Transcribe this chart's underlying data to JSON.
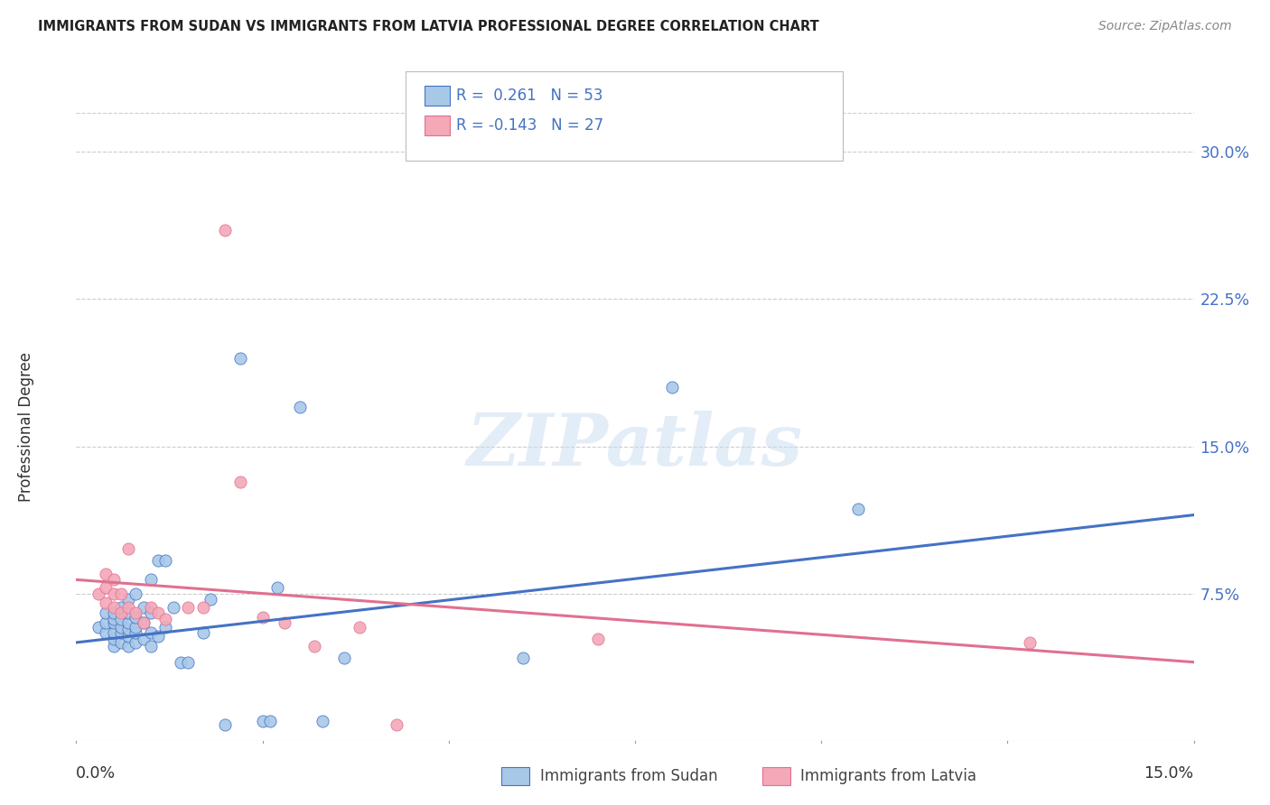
{
  "title": "IMMIGRANTS FROM SUDAN VS IMMIGRANTS FROM LATVIA PROFESSIONAL DEGREE CORRELATION CHART",
  "source": "Source: ZipAtlas.com",
  "ylabel": "Professional Degree",
  "right_yticks": [
    "30.0%",
    "22.5%",
    "15.0%",
    "7.5%"
  ],
  "right_ytick_values": [
    0.3,
    0.225,
    0.15,
    0.075
  ],
  "xlim": [
    0.0,
    0.15
  ],
  "ylim": [
    0.0,
    0.32
  ],
  "sudan_color": "#a8c8e8",
  "latvia_color": "#f4a8b8",
  "sudan_line_color": "#4472c4",
  "latvia_line_color": "#e07090",
  "watermark": "ZIPatlas",
  "sudan_scatter_x": [
    0.003,
    0.004,
    0.004,
    0.004,
    0.005,
    0.005,
    0.005,
    0.005,
    0.005,
    0.005,
    0.006,
    0.006,
    0.006,
    0.006,
    0.006,
    0.007,
    0.007,
    0.007,
    0.007,
    0.007,
    0.007,
    0.008,
    0.008,
    0.008,
    0.008,
    0.008,
    0.009,
    0.009,
    0.009,
    0.01,
    0.01,
    0.01,
    0.01,
    0.011,
    0.011,
    0.012,
    0.012,
    0.013,
    0.014,
    0.015,
    0.017,
    0.018,
    0.02,
    0.022,
    0.025,
    0.026,
    0.027,
    0.03,
    0.033,
    0.036,
    0.06,
    0.08,
    0.105
  ],
  "sudan_scatter_y": [
    0.058,
    0.055,
    0.06,
    0.065,
    0.048,
    0.052,
    0.055,
    0.06,
    0.062,
    0.065,
    0.05,
    0.055,
    0.058,
    0.062,
    0.068,
    0.048,
    0.053,
    0.057,
    0.06,
    0.065,
    0.072,
    0.05,
    0.055,
    0.058,
    0.063,
    0.075,
    0.052,
    0.06,
    0.068,
    0.048,
    0.055,
    0.065,
    0.082,
    0.053,
    0.092,
    0.058,
    0.092,
    0.068,
    0.04,
    0.04,
    0.055,
    0.072,
    0.008,
    0.195,
    0.01,
    0.01,
    0.078,
    0.17,
    0.01,
    0.042,
    0.042,
    0.18,
    0.118
  ],
  "latvia_scatter_x": [
    0.003,
    0.004,
    0.004,
    0.004,
    0.005,
    0.005,
    0.005,
    0.006,
    0.006,
    0.007,
    0.007,
    0.008,
    0.009,
    0.01,
    0.011,
    0.012,
    0.015,
    0.017,
    0.022,
    0.025,
    0.028,
    0.032,
    0.038,
    0.043,
    0.02,
    0.07,
    0.128
  ],
  "latvia_scatter_y": [
    0.075,
    0.07,
    0.078,
    0.085,
    0.068,
    0.075,
    0.082,
    0.065,
    0.075,
    0.068,
    0.098,
    0.065,
    0.06,
    0.068,
    0.065,
    0.062,
    0.068,
    0.068,
    0.132,
    0.063,
    0.06,
    0.048,
    0.058,
    0.008,
    0.26,
    0.052,
    0.05
  ],
  "sudan_trend_x": [
    0.0,
    0.15
  ],
  "sudan_trend_y": [
    0.05,
    0.115
  ],
  "latvia_trend_x": [
    0.0,
    0.15
  ],
  "latvia_trend_y": [
    0.082,
    0.04
  ]
}
